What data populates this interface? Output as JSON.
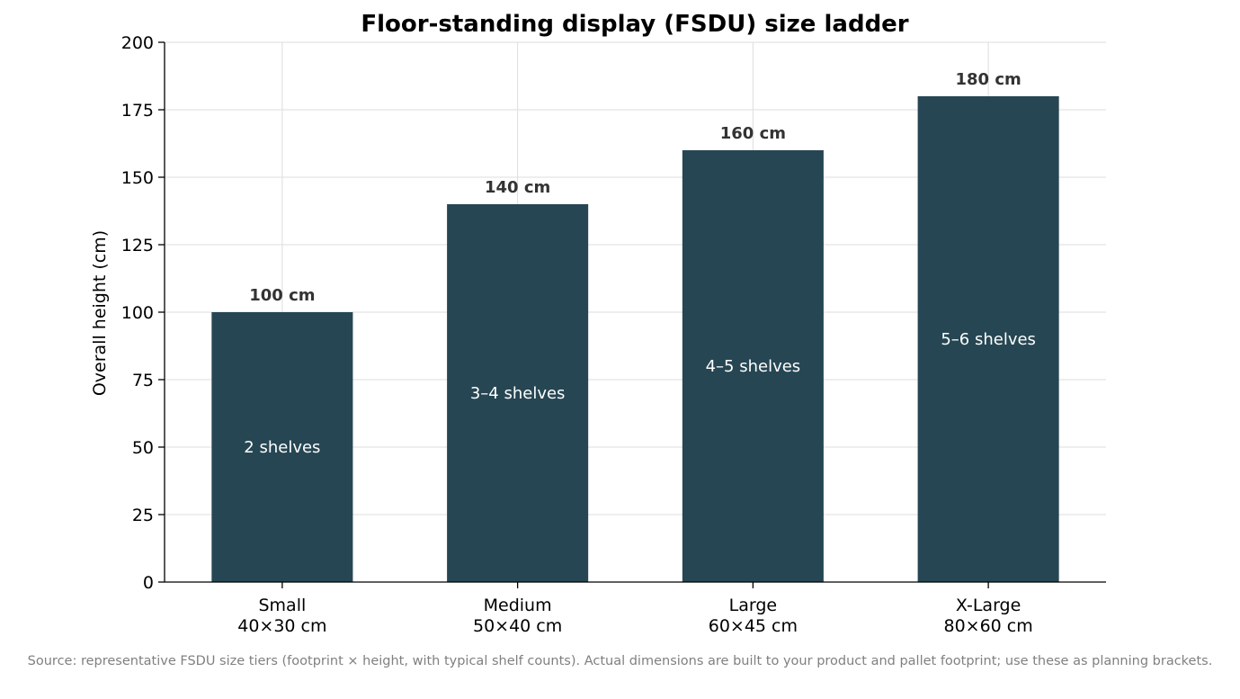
{
  "chart_data": {
    "type": "bar",
    "title": "Floor-standing display (FSDU) size ladder",
    "xlabel": "",
    "ylabel": "Overall height (cm)",
    "ylim": [
      0,
      200
    ],
    "yticks": [
      0,
      25,
      50,
      75,
      100,
      125,
      150,
      175,
      200
    ],
    "grid": true,
    "categories": [
      {
        "name": "Small",
        "footprint": "40×30 cm"
      },
      {
        "name": "Medium",
        "footprint": "50×40 cm"
      },
      {
        "name": "Large",
        "footprint": "60×45 cm"
      },
      {
        "name": "X-Large",
        "footprint": "80×60 cm"
      }
    ],
    "values": [
      100,
      140,
      160,
      180
    ],
    "value_labels": [
      "100 cm",
      "140 cm",
      "160 cm",
      "180 cm"
    ],
    "shelf_labels": [
      "2 shelves",
      "3–4 shelves",
      "4–5 shelves",
      "5–6 shelves"
    ],
    "colors": {
      "bar": "#264653",
      "grid": "#dddddd",
      "axis": "#000000"
    }
  },
  "source_note": "Source: representative FSDU size tiers (footprint × height, with typical shelf counts). Actual dimensions are built to your product and pallet footprint; use these as planning brackets."
}
